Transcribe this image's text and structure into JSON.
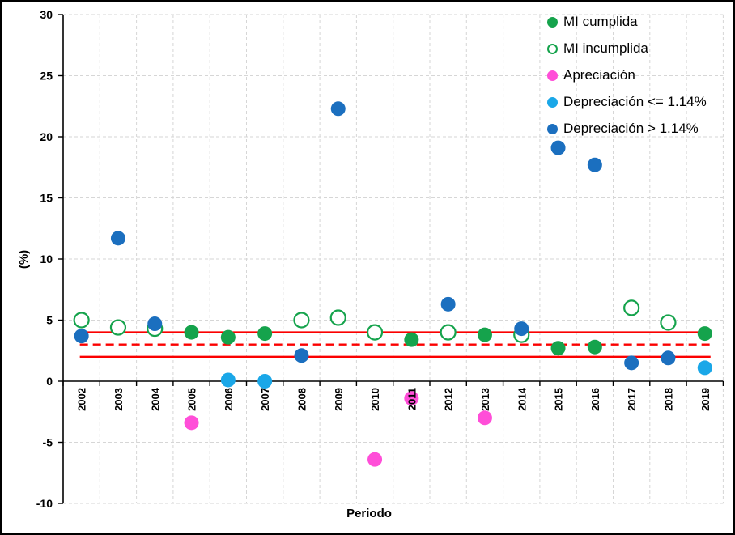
{
  "chart_data": {
    "type": "scatter",
    "title": "",
    "xlabel": "Periodo",
    "ylabel": "(%)",
    "ylim": [
      -10,
      30
    ],
    "ytick_step": 5,
    "grid": "dashed-gray-both-axes",
    "legend_position": "top-right-inside",
    "categories": [
      "2002",
      "2003",
      "2004",
      "2005",
      "2006",
      "2007",
      "2008",
      "2009",
      "2010",
      "2011",
      "2012",
      "2013",
      "2014",
      "2015",
      "2016",
      "2017",
      "2018",
      "2019"
    ],
    "series": [
      {
        "name": "MI cumplida",
        "color": "#15a34c",
        "marker": "filled",
        "points": {
          "2005": 4.0,
          "2006": 3.6,
          "2007": 3.9,
          "2011": 3.4,
          "2013": 3.8,
          "2015": 2.7,
          "2016": 2.8,
          "2019": 3.9
        }
      },
      {
        "name": "MI incumplida",
        "color": "#15a34c",
        "marker": "open",
        "points": {
          "2002": 5.0,
          "2003": 4.4,
          "2004": 4.3,
          "2008": 5.0,
          "2009": 5.2,
          "2010": 4.0,
          "2012": 4.0,
          "2014": 3.8,
          "2017": 6.0,
          "2018": 4.8
        }
      },
      {
        "name": "Apreciación",
        "color": "#ff4ed8",
        "marker": "filled",
        "points": {
          "2005": -3.4,
          "2010": -6.4,
          "2011": -1.4,
          "2013": -3.0
        }
      },
      {
        "name": "Depreciación <= 1.14%",
        "color": "#1aa7e8",
        "marker": "filled",
        "points": {
          "2006": 0.1,
          "2007": 0.0,
          "2019": 1.1
        }
      },
      {
        "name": "Depreciación > 1.14%",
        "color": "#1b6fbf",
        "marker": "filled",
        "points": {
          "2002": 3.7,
          "2003": 11.7,
          "2004": 4.7,
          "2008": 2.1,
          "2009": 22.3,
          "2012": 6.3,
          "2014": 4.3,
          "2015": 19.1,
          "2016": 17.7,
          "2017": 1.5,
          "2018": 1.9
        }
      }
    ],
    "ref_lines": [
      {
        "value": 4.0,
        "style": "solid",
        "color": "#fb0000"
      },
      {
        "value": 3.0,
        "style": "dashed",
        "color": "#fb0000"
      },
      {
        "value": 2.0,
        "style": "solid",
        "color": "#fb0000"
      }
    ]
  }
}
